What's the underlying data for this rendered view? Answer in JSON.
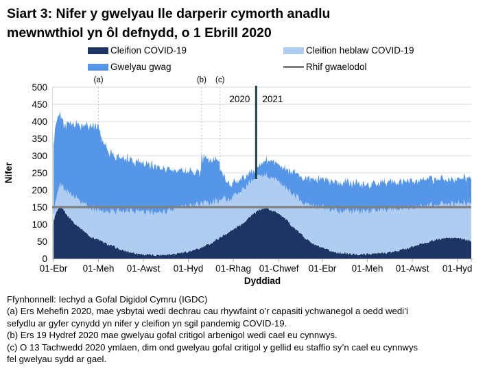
{
  "title": {
    "line1": "Siart 3: Nifer y gwelyau lle darperir cymorth anadlu",
    "line2": "mewnwthiol yn ôl defnydd, o 1 Ebrill 2020"
  },
  "legend": {
    "items": [
      {
        "label": "Cleifion COVID-19",
        "color": "#1C3564",
        "type": "box"
      },
      {
        "label": "Cleifion heblaw COVID-19",
        "color": "#AFCDF0",
        "type": "box"
      },
      {
        "label": "Gwelyau gwag",
        "color": "#5596E8",
        "type": "box"
      },
      {
        "label": "Rhif gwaelodol",
        "color": "#7F7F7F",
        "type": "line"
      }
    ]
  },
  "footnotes": {
    "source": "Ffynhonnell: Iechyd a Gofal Digidol Cymru (IGDC)",
    "a": "(a) Ers Mehefin 2020, mae ysbytai wedi dechrau cau rhywfaint o’r capasiti ychwanegol a oedd wedi’i sefydlu ar gyfer cynydd yn nifer y cleifion yn sgil pandemig COVID-19.",
    "b": "(b) Ers 19 Hydref 2020 mae gwelyau gofal critigol arbenigol wedi cael eu cynnwys.",
    "c": "(c) O 13 Tachwedd 2020 ymlaen, dim ond gwelyau gofal critigol y gellid eu staffio sy’n cael eu cynnwys fel gwelyau sydd ar gael."
  },
  "chart_data": {
    "type": "area",
    "stacked": true,
    "title": "Siart 3: Nifer y gwelyau lle darperir cymorth anadlu mewnwthiol yn ôl defnydd, o 1 Ebrill 2020",
    "xlabel": "Dyddiad",
    "ylabel": "Nifer",
    "ylim": [
      0,
      500
    ],
    "ytick_step": 50,
    "grid": true,
    "x_unit": "days since 2020-04-01",
    "x_tick_days": [
      0,
      61,
      122,
      183,
      244,
      306,
      365,
      426,
      487,
      548
    ],
    "x_tick_labels": [
      "01-Ebr",
      "01-Meh",
      "01-Awst",
      "01-Hyd",
      "01-Rhag",
      "01-Chwef",
      "01-Ebr",
      "01-Meh",
      "01-Awst",
      "01-Hyd"
    ],
    "baseline": {
      "label": "Rhif gwaelodol",
      "value": 150,
      "color": "#7F7F7F"
    },
    "year_divider": {
      "day": 275,
      "left_label": "2020",
      "right_label": "2021",
      "color": "#24404D"
    },
    "annotations": [
      {
        "label": "(a)",
        "day": 61
      },
      {
        "label": "(b)",
        "day": 201
      },
      {
        "label": "(c)",
        "day": 226
      }
    ],
    "sample_days": [
      0,
      4,
      9,
      13,
      19,
      30,
      39,
      49,
      61,
      65,
      70,
      75,
      82,
      91,
      105,
      122,
      136,
      153,
      167,
      183,
      192,
      200,
      201,
      214,
      225,
      226,
      233,
      239,
      248,
      258,
      268,
      275,
      282,
      289,
      296,
      306,
      315,
      325,
      334,
      343,
      353,
      365,
      379,
      395,
      409,
      426,
      440,
      456,
      470,
      487,
      501,
      518,
      532,
      548,
      557,
      567
    ],
    "series": [
      {
        "name": "Cleifion COVID-19",
        "color": "#1C3564",
        "values": [
          110,
          135,
          148,
          145,
          125,
          100,
          85,
          65,
          55,
          50,
          45,
          40,
          35,
          25,
          18,
          12,
          10,
          12,
          15,
          20,
          25,
          30,
          32,
          45,
          60,
          62,
          70,
          78,
          90,
          105,
          125,
          135,
          145,
          147,
          140,
          132,
          115,
          92,
          75,
          58,
          42,
          30,
          20,
          15,
          12,
          13,
          15,
          18,
          24,
          34,
          44,
          54,
          60,
          60,
          56,
          52
        ]
      },
      {
        "name": "Cleifion heblaw COVID-19",
        "color": "#AFCDF0",
        "values": [
          20,
          40,
          67,
          65,
          70,
          80,
          80,
          85,
          87,
          90,
          93,
          100,
          103,
          115,
          124,
          126,
          122,
          128,
          133,
          132,
          130,
          128,
          128,
          120,
          112,
          110,
          105,
          94,
          95,
          100,
          100,
          100,
          100,
          95,
          95,
          93,
          93,
          96,
          97,
          102,
          110,
          118,
          123,
          125,
          126,
          127,
          127,
          127,
          124,
          116,
          108,
          104,
          100,
          102,
          104,
          106
        ]
      },
      {
        "name": "Gwelyau gwag",
        "color": "#5596E8",
        "values": [
          205,
          225,
          205,
          185,
          195,
          212,
          225,
          238,
          243,
          210,
          202,
          170,
          162,
          155,
          146,
          140,
          138,
          122,
          107,
          100,
          95,
          94,
          133,
          127,
          116,
          90,
          55,
          46,
          35,
          33,
          27,
          23,
          35,
          45,
          45,
          47,
          54,
          64,
          70,
          75,
          80,
          82,
          83,
          84,
          82,
          76,
          78,
          79,
          78,
          78,
          78,
          76,
          70,
          70,
          74,
          72
        ]
      }
    ],
    "jitter_amplitudes": [
      3.5,
      9,
      7
    ],
    "colors": {
      "gridline": "#D9D9D9",
      "axis": "#A6A6A6",
      "annotation_line": "#BFBFBF"
    }
  }
}
